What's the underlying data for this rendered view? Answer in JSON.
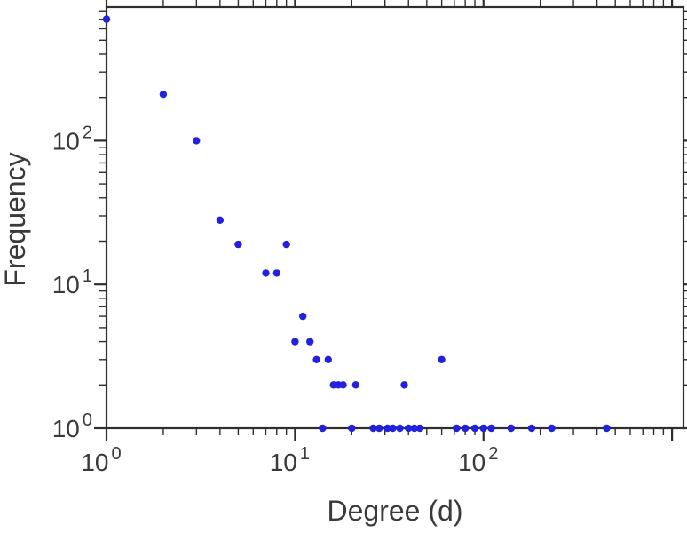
{
  "chart_data": {
    "type": "scatter",
    "title": "",
    "xlabel": "Degree (d)",
    "ylabel": "Frequency",
    "x_scale": "log",
    "y_scale": "log",
    "xlim": [
      1,
      1150
    ],
    "ylim": [
      1,
      850
    ],
    "grid": false,
    "legend": null,
    "tick_label_base": "10",
    "x_tick_exponents": [
      0,
      1,
      2
    ],
    "y_tick_exponents": [
      0,
      1,
      2
    ],
    "point_color": "#2222dd",
    "points": [
      [
        1,
        700
      ],
      [
        2,
        210
      ],
      [
        3,
        100
      ],
      [
        4,
        28
      ],
      [
        5,
        19
      ],
      [
        7,
        12
      ],
      [
        8,
        12
      ],
      [
        9,
        19
      ],
      [
        10,
        4
      ],
      [
        11,
        6
      ],
      [
        12,
        4
      ],
      [
        13,
        3
      ],
      [
        14,
        1
      ],
      [
        15,
        3
      ],
      [
        16,
        2
      ],
      [
        17,
        2
      ],
      [
        18,
        2
      ],
      [
        20,
        1
      ],
      [
        21,
        2
      ],
      [
        26,
        1
      ],
      [
        28,
        1
      ],
      [
        31,
        1
      ],
      [
        33,
        1
      ],
      [
        36,
        1
      ],
      [
        38,
        2
      ],
      [
        40,
        1
      ],
      [
        43,
        1
      ],
      [
        46,
        1
      ],
      [
        60,
        3
      ],
      [
        72,
        1
      ],
      [
        80,
        1
      ],
      [
        90,
        1
      ],
      [
        100,
        1
      ],
      [
        110,
        1
      ],
      [
        140,
        1
      ],
      [
        180,
        1
      ],
      [
        230,
        1
      ],
      [
        450,
        1
      ]
    ]
  },
  "axes": {
    "frame_color": "#2e2e2e",
    "text_color": "#3a3a3a"
  }
}
